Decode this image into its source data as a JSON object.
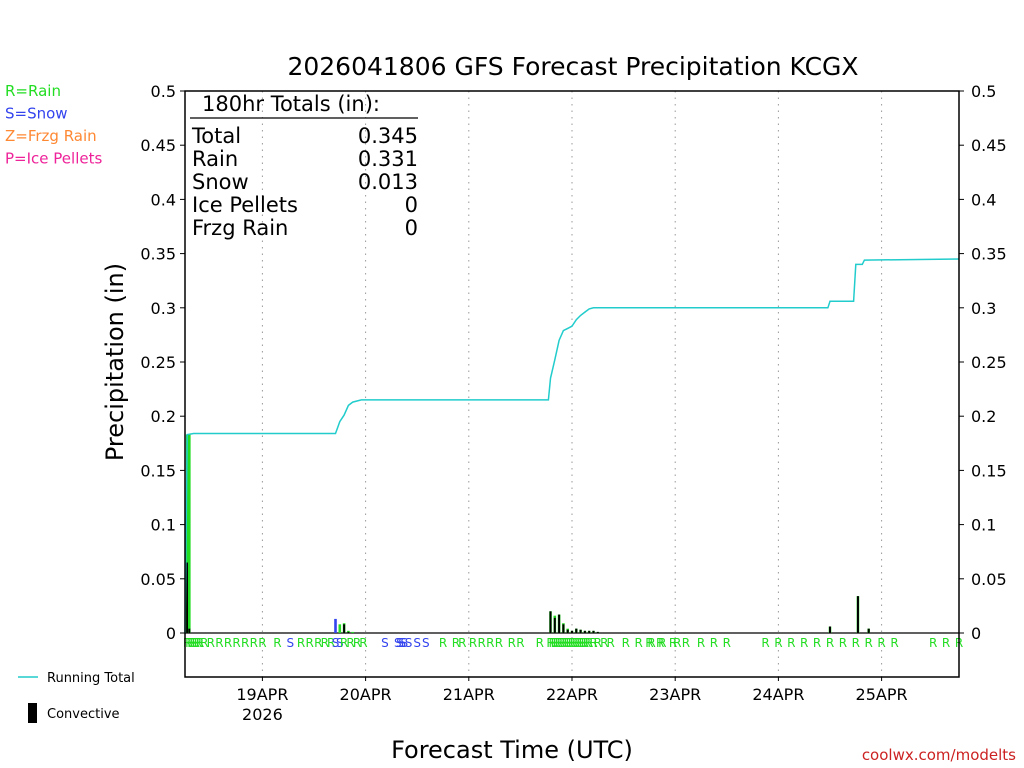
{
  "chart_data": {
    "type": "bar+line",
    "title": "2026041806 GFS Forecast Precipitation KCGX",
    "ylabel": "Precipitation  (in)",
    "xlabel": "Forecast Time (UTC)",
    "ylim": [
      0,
      0.5
    ],
    "yticks": [
      0,
      0.05,
      0.1,
      0.15,
      0.2,
      0.25,
      0.3,
      0.35,
      0.4,
      0.45,
      0.5
    ],
    "ytick_labels": [
      "0",
      "0.05",
      "0.1",
      "0.15",
      "0.2",
      "0.25",
      "0.3",
      "0.35",
      "0.4",
      "0.45",
      "0.5"
    ],
    "xlim_hours": [
      0,
      180
    ],
    "x_unit": "forecast hours from 2026041806",
    "date_ticks": [
      {
        "hour": 18,
        "label": "19APR",
        "sub": "2026"
      },
      {
        "hour": 42,
        "label": "20APR",
        "sub": ""
      },
      {
        "hour": 66,
        "label": "21APR",
        "sub": ""
      },
      {
        "hour": 90,
        "label": "22APR",
        "sub": ""
      },
      {
        "hour": 114,
        "label": "23APR",
        "sub": ""
      },
      {
        "hour": 138,
        "label": "24APR",
        "sub": ""
      },
      {
        "hour": 162,
        "label": "25APR",
        "sub": ""
      }
    ],
    "totals": {
      "header": "180hr Totals (in):",
      "rows": [
        {
          "label": "Total",
          "value": "0.345"
        },
        {
          "label": "Rain",
          "value": "0.331"
        },
        {
          "label": "Snow",
          "value": "0.013"
        },
        {
          "label": "Ice Pellets",
          "value": "0"
        },
        {
          "label": "Frzg Rain",
          "value": "0"
        }
      ]
    },
    "type_legend": [
      {
        "text": "R=Rain",
        "color": "#22dd22"
      },
      {
        "text": "S=Snow",
        "color": "#3344ee"
      },
      {
        "text": "Z=Frzg Rain",
        "color": "#ff8833"
      },
      {
        "text": "P=Ice Pellets",
        "color": "#ee2299"
      }
    ],
    "series_legend": {
      "running_total": {
        "label": "Running Total",
        "color": "#22cccc"
      },
      "convective": {
        "label": "Convective",
        "color": "#000000"
      }
    },
    "bars": [
      {
        "h": 0.5,
        "v": 0.183,
        "type": "R",
        "conv": 0.065
      },
      {
        "h": 1.0,
        "v": 0.183,
        "type": "R",
        "conv": 0.004
      },
      {
        "h": 35.0,
        "v": 0.013,
        "type": "S",
        "conv": 0
      },
      {
        "h": 36.0,
        "v": 0.008,
        "type": "R",
        "conv": 0
      },
      {
        "h": 37.0,
        "v": 0.009,
        "type": "R",
        "conv": 0.008
      },
      {
        "h": 38.0,
        "v": 0.002,
        "type": "R",
        "conv": 0.001
      },
      {
        "h": 39.0,
        "v": 0.001,
        "type": "R",
        "conv": 0
      },
      {
        "h": 85.0,
        "v": 0.02,
        "type": "R",
        "conv": 0.02
      },
      {
        "h": 86.0,
        "v": 0.016,
        "type": "R",
        "conv": 0.014
      },
      {
        "h": 87.0,
        "v": 0.017,
        "type": "R",
        "conv": 0.017
      },
      {
        "h": 88.0,
        "v": 0.009,
        "type": "R",
        "conv": 0.008
      },
      {
        "h": 89.0,
        "v": 0.004,
        "type": "R",
        "conv": 0.003
      },
      {
        "h": 90.0,
        "v": 0.002,
        "type": "R",
        "conv": 0.002
      },
      {
        "h": 91.0,
        "v": 0.004,
        "type": "R",
        "conv": 0.004
      },
      {
        "h": 92.0,
        "v": 0.003,
        "type": "R",
        "conv": 0.003
      },
      {
        "h": 93.0,
        "v": 0.002,
        "type": "R",
        "conv": 0.002
      },
      {
        "h": 94.0,
        "v": 0.002,
        "type": "R",
        "conv": 0.002
      },
      {
        "h": 95.0,
        "v": 0.002,
        "type": "R",
        "conv": 0.002
      },
      {
        "h": 96.0,
        "v": 0.001,
        "type": "R",
        "conv": 0.001
      },
      {
        "h": 150.0,
        "v": 0.006,
        "type": "R",
        "conv": 0.006
      },
      {
        "h": 156.5,
        "v": 0.034,
        "type": "R",
        "conv": 0.034
      },
      {
        "h": 159.0,
        "v": 0.004,
        "type": "R",
        "conv": 0.004
      }
    ],
    "running_total": [
      [
        0,
        0
      ],
      [
        0.5,
        0.183
      ],
      [
        2,
        0.184
      ],
      [
        35,
        0.184
      ],
      [
        36,
        0.195
      ],
      [
        37,
        0.201
      ],
      [
        38,
        0.21
      ],
      [
        39,
        0.213
      ],
      [
        41,
        0.215
      ],
      [
        84.5,
        0.215
      ],
      [
        85,
        0.235
      ],
      [
        86,
        0.252
      ],
      [
        87,
        0.27
      ],
      [
        88,
        0.279
      ],
      [
        89,
        0.281
      ],
      [
        90,
        0.283
      ],
      [
        91,
        0.289
      ],
      [
        92,
        0.293
      ],
      [
        93,
        0.296
      ],
      [
        94,
        0.299
      ],
      [
        95,
        0.3
      ],
      [
        149.5,
        0.3
      ],
      [
        150,
        0.306
      ],
      [
        155.5,
        0.306
      ],
      [
        156,
        0.34
      ],
      [
        157.5,
        0.34
      ],
      [
        158,
        0.344
      ],
      [
        180,
        0.345
      ]
    ],
    "ptype_row": [
      {
        "h": 0.5,
        "c": "R"
      },
      {
        "h": 1.0,
        "c": "R"
      },
      {
        "h": 1.5,
        "c": "R"
      },
      {
        "h": 2.0,
        "c": "R"
      },
      {
        "h": 2.5,
        "c": "R"
      },
      {
        "h": 3.0,
        "c": "R"
      },
      {
        "h": 3.5,
        "c": "R"
      },
      {
        "h": 4.5,
        "c": "R"
      },
      {
        "h": 6.0,
        "c": "R"
      },
      {
        "h": 8.0,
        "c": "R"
      },
      {
        "h": 10.0,
        "c": "R"
      },
      {
        "h": 12.0,
        "c": "R"
      },
      {
        "h": 14.0,
        "c": "R"
      },
      {
        "h": 16.0,
        "c": "R"
      },
      {
        "h": 18.0,
        "c": "R"
      },
      {
        "h": 21.5,
        "c": "R"
      },
      {
        "h": 24.5,
        "c": "S"
      },
      {
        "h": 27.0,
        "c": "R"
      },
      {
        "h": 29.0,
        "c": "R"
      },
      {
        "h": 31.0,
        "c": "R"
      },
      {
        "h": 32.5,
        "c": "R"
      },
      {
        "h": 34.0,
        "c": "R"
      },
      {
        "h": 35.0,
        "c": "S"
      },
      {
        "h": 36.0,
        "c": "S"
      },
      {
        "h": 37.0,
        "c": "R"
      },
      {
        "h": 38.5,
        "c": "R"
      },
      {
        "h": 40.0,
        "c": "R"
      },
      {
        "h": 41.5,
        "c": "R"
      },
      {
        "h": 46.5,
        "c": "S"
      },
      {
        "h": 49.5,
        "c": "S"
      },
      {
        "h": 50.0,
        "c": "S"
      },
      {
        "h": 50.5,
        "c": "S"
      },
      {
        "h": 51.0,
        "c": "S"
      },
      {
        "h": 52.0,
        "c": "S"
      },
      {
        "h": 54.0,
        "c": "S"
      },
      {
        "h": 56.0,
        "c": "S"
      },
      {
        "h": 60.0,
        "c": "R"
      },
      {
        "h": 63.0,
        "c": "R"
      },
      {
        "h": 64.5,
        "c": "R"
      },
      {
        "h": 67.0,
        "c": "R"
      },
      {
        "h": 69.0,
        "c": "R"
      },
      {
        "h": 71.0,
        "c": "R"
      },
      {
        "h": 73.0,
        "c": "R"
      },
      {
        "h": 76.0,
        "c": "R"
      },
      {
        "h": 78.0,
        "c": "R"
      },
      {
        "h": 82.5,
        "c": "R"
      },
      {
        "h": 85.0,
        "c": "R"
      },
      {
        "h": 85.5,
        "c": "R"
      },
      {
        "h": 86.0,
        "c": "R"
      },
      {
        "h": 86.5,
        "c": "R"
      },
      {
        "h": 87.0,
        "c": "R"
      },
      {
        "h": 87.5,
        "c": "R"
      },
      {
        "h": 88.0,
        "c": "R"
      },
      {
        "h": 88.5,
        "c": "R"
      },
      {
        "h": 89.0,
        "c": "R"
      },
      {
        "h": 89.5,
        "c": "R"
      },
      {
        "h": 90.0,
        "c": "R"
      },
      {
        "h": 90.5,
        "c": "R"
      },
      {
        "h": 91.0,
        "c": "R"
      },
      {
        "h": 91.5,
        "c": "R"
      },
      {
        "h": 92.0,
        "c": "R"
      },
      {
        "h": 92.5,
        "c": "R"
      },
      {
        "h": 93.0,
        "c": "R"
      },
      {
        "h": 93.5,
        "c": "R"
      },
      {
        "h": 94.0,
        "c": "R"
      },
      {
        "h": 95.0,
        "c": "R"
      },
      {
        "h": 96.0,
        "c": "R"
      },
      {
        "h": 97.5,
        "c": "R"
      },
      {
        "h": 99.0,
        "c": "R"
      },
      {
        "h": 102.5,
        "c": "R"
      },
      {
        "h": 105.5,
        "c": "R"
      },
      {
        "h": 108.0,
        "c": "R"
      },
      {
        "h": 108.5,
        "c": "R"
      },
      {
        "h": 110.5,
        "c": "R"
      },
      {
        "h": 111.0,
        "c": "R"
      },
      {
        "h": 113.5,
        "c": "R"
      },
      {
        "h": 114.5,
        "c": "R"
      },
      {
        "h": 116.5,
        "c": "R"
      },
      {
        "h": 120.0,
        "c": "R"
      },
      {
        "h": 123.0,
        "c": "R"
      },
      {
        "h": 126.0,
        "c": "R"
      },
      {
        "h": 135.0,
        "c": "R"
      },
      {
        "h": 138.0,
        "c": "R"
      },
      {
        "h": 141.0,
        "c": "R"
      },
      {
        "h": 144.0,
        "c": "R"
      },
      {
        "h": 147.0,
        "c": "R"
      },
      {
        "h": 150.0,
        "c": "R"
      },
      {
        "h": 153.0,
        "c": "R"
      },
      {
        "h": 156.0,
        "c": "R"
      },
      {
        "h": 159.0,
        "c": "R"
      },
      {
        "h": 162.0,
        "c": "R"
      },
      {
        "h": 165.0,
        "c": "R"
      },
      {
        "h": 174.0,
        "c": "R"
      },
      {
        "h": 177.0,
        "c": "R"
      },
      {
        "h": 180.0,
        "c": "R"
      }
    ],
    "credit": "coolwx.com/modelts"
  }
}
